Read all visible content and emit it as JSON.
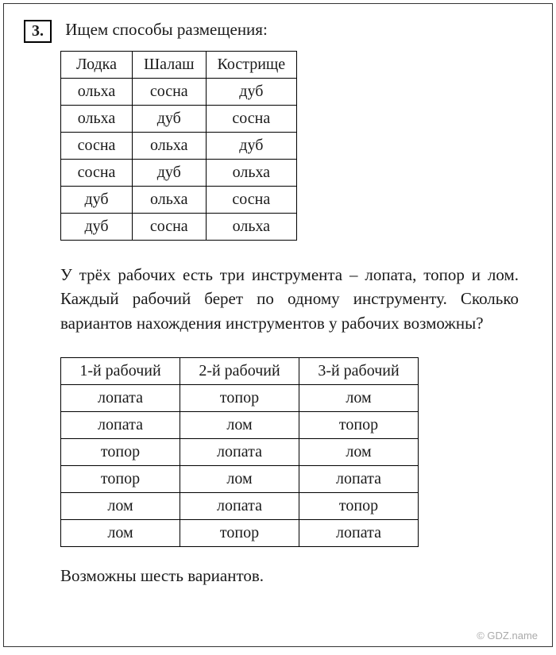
{
  "exercise_number": "3.",
  "intro_text": "Ищем способы размещения:",
  "table1": {
    "columns": [
      "Лодка",
      "Шалаш",
      "Кострище"
    ],
    "rows": [
      [
        "ольха",
        "сосна",
        "дуб"
      ],
      [
        "ольха",
        "дуб",
        "сосна"
      ],
      [
        "сосна",
        "ольха",
        "дуб"
      ],
      [
        "сосна",
        "дуб",
        "ольха"
      ],
      [
        "дуб",
        "ольха",
        "сосна"
      ],
      [
        "дуб",
        "сосна",
        "ольха"
      ]
    ],
    "border_color": "#000000",
    "font_size_pt": 15
  },
  "paragraph_text": "У трёх рабочих есть три инструмента – лопата, топор и лом. Каждый рабочий берет по одному инструменту. Сколько вариантов нахождения инструментов у рабочих возможны?",
  "table2": {
    "columns": [
      "1-й рабочий",
      "2-й рабочий",
      "3-й рабочий"
    ],
    "rows": [
      [
        "лопата",
        "топор",
        "лом"
      ],
      [
        "лопата",
        "лом",
        "топор"
      ],
      [
        "топор",
        "лопата",
        "лом"
      ],
      [
        "топор",
        "лом",
        "лопата"
      ],
      [
        "лом",
        "лопата",
        "топор"
      ],
      [
        "лом",
        "топор",
        "лопата"
      ]
    ],
    "border_color": "#000000",
    "font_size_pt": 15
  },
  "conclusion_text": "Возможны шесть вариантов.",
  "watermark_text": "© GDZ.name",
  "page": {
    "background_color": "#ffffff",
    "text_color": "#1a1a1a",
    "font_family": "serif"
  }
}
